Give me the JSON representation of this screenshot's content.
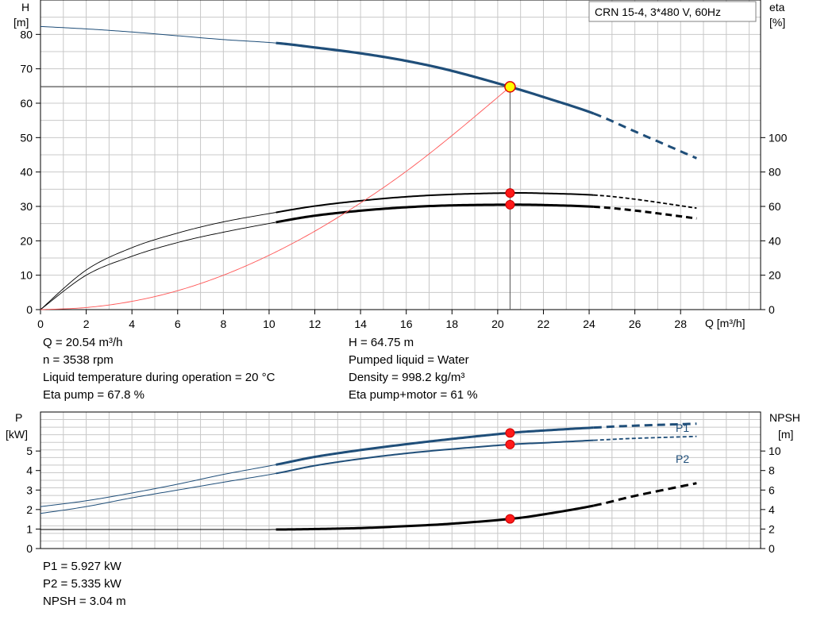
{
  "chart_data": [
    {
      "type": "line",
      "title": "CRN 15-4, 3*480 V, 60Hz",
      "xlabel": "Q [m³/h]",
      "ylabel_left_name": "H",
      "ylabel_left_unit": "[m]",
      "ylabel_right_name": "eta",
      "ylabel_right_unit": "[%]",
      "xlim": [
        0,
        31.5
      ],
      "ylim_left": [
        0,
        90
      ],
      "ylim_right": [
        0,
        180
      ],
      "x_ticks": [
        0,
        2,
        4,
        6,
        8,
        10,
        12,
        14,
        16,
        18,
        20,
        22,
        24,
        26,
        28
      ],
      "y_left_ticks": [
        0,
        10,
        20,
        30,
        40,
        50,
        60,
        70,
        80
      ],
      "y_right_ticks": [
        0,
        20,
        40,
        60,
        80,
        100
      ],
      "grid": true,
      "operating_point": {
        "x": 20.54,
        "H": 64.75,
        "eta_pump": 67.8,
        "eta_total": 61
      },
      "series": [
        {
          "axis": "left",
          "color": "#1f4e79",
          "style": "head",
          "x": [
            0,
            2,
            4,
            6,
            8,
            10.3,
            12,
            14,
            16,
            18,
            20.54,
            22,
            24.2,
            26,
            28.7
          ],
          "y": [
            82.3,
            81.6,
            80.7,
            79.6,
            78.5,
            77.5,
            76.2,
            74.5,
            72.3,
            69.4,
            64.75,
            61.8,
            57.0,
            51.8,
            44.0
          ]
        },
        {
          "axis": "right",
          "color": "#000000",
          "style": "eta_pump",
          "x": [
            0,
            2,
            4,
            6,
            8,
            10.3,
            12,
            14,
            16,
            18,
            20.54,
            22,
            24.2,
            26,
            28.7
          ],
          "y": [
            0,
            23,
            36,
            44.5,
            51,
            56.5,
            60.2,
            63.3,
            65.6,
            67.0,
            67.8,
            67.6,
            66.6,
            64.2,
            59.0
          ]
        },
        {
          "axis": "right",
          "color": "#000000",
          "style": "eta_total",
          "x": [
            0,
            2,
            4,
            6,
            8,
            10.3,
            12,
            14,
            16,
            18,
            20.54,
            22,
            24.2,
            26,
            28.7
          ],
          "y": [
            0,
            20,
            31,
            39,
            45,
            50.8,
            54.6,
            57.5,
            59.5,
            60.6,
            61.0,
            60.8,
            59.8,
            57.6,
            53.0
          ]
        },
        {
          "axis": "left",
          "color": "#ff5555",
          "style": "system",
          "x": [
            0,
            2,
            4,
            6,
            8,
            10,
            12,
            14,
            16,
            18,
            20.54
          ],
          "y": [
            0,
            0.6,
            2.4,
            5.5,
            10,
            15.8,
            22.8,
            31,
            40.2,
            50.6,
            64.75
          ]
        }
      ]
    },
    {
      "type": "line",
      "ylabel_left_name": "P",
      "ylabel_left_unit": "[kW]",
      "ylabel_right_name": "NPSH",
      "ylabel_right_unit": "[m]",
      "xlim": [
        0,
        31.5
      ],
      "ylim_left": [
        0,
        7
      ],
      "ylim_right": [
        0,
        14
      ],
      "y_left_ticks": [
        0,
        1,
        2,
        3,
        4,
        5
      ],
      "y_right_ticks": [
        0,
        2,
        4,
        6,
        8,
        10
      ],
      "grid": true,
      "series_labels": {
        "P1": "P1",
        "P2": "P2"
      },
      "series": [
        {
          "name": "P1",
          "axis": "left",
          "color": "#1f4e79",
          "style": "p1",
          "x": [
            0,
            2,
            4,
            6,
            8,
            10.3,
            12,
            14,
            16,
            18,
            20.54,
            22,
            24.2,
            26,
            28.7
          ],
          "y": [
            2.15,
            2.45,
            2.85,
            3.3,
            3.8,
            4.3,
            4.7,
            5.05,
            5.35,
            5.62,
            5.927,
            6.05,
            6.2,
            6.3,
            6.4
          ]
        },
        {
          "name": "P2",
          "axis": "left",
          "color": "#1f4e79",
          "style": "p2",
          "x": [
            0,
            2,
            4,
            6,
            8,
            10.3,
            12,
            14,
            16,
            18,
            20.54,
            22,
            24.2,
            26,
            28.7
          ],
          "y": [
            1.8,
            2.15,
            2.6,
            3.0,
            3.4,
            3.85,
            4.25,
            4.6,
            4.88,
            5.1,
            5.335,
            5.42,
            5.55,
            5.65,
            5.75
          ]
        },
        {
          "name": "NPSH",
          "axis": "right",
          "color": "#000000",
          "style": "npsh",
          "x": [
            0,
            4,
            8,
            10.3,
            12,
            14,
            16,
            18,
            20.54,
            22,
            24.2,
            26,
            28.7
          ],
          "y": [
            1.95,
            1.95,
            1.95,
            1.95,
            2.0,
            2.1,
            2.3,
            2.55,
            3.04,
            3.5,
            4.4,
            5.4,
            6.7
          ]
        }
      ]
    }
  ],
  "info_top_left": [
    "Q = 20.54 m³/h",
    "n = 3538 rpm",
    "Liquid temperature during operation = 20 °C",
    "Eta pump = 67.8 %"
  ],
  "info_top_right": [
    "H = 64.75 m",
    "Pumped liquid = Water",
    "Density = 998.2 kg/m³",
    "Eta pump+motor = 61 %"
  ],
  "info_bottom": [
    "P1 = 5.927 kW",
    "P2 = 5.335 kW",
    "NPSH = 3.04 m"
  ]
}
